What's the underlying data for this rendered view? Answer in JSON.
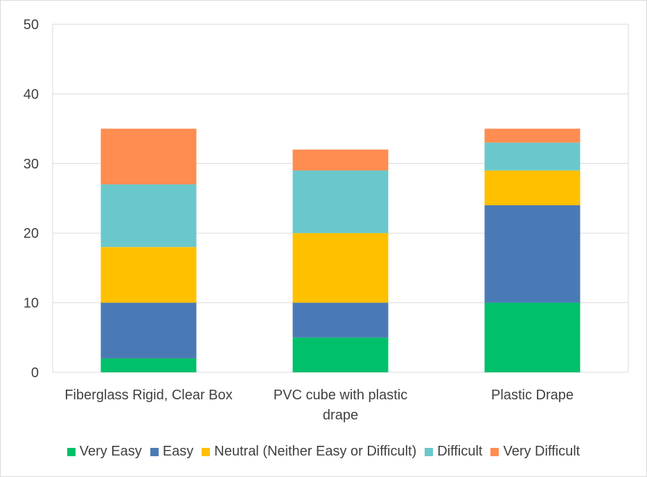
{
  "chart_data": {
    "type": "bar",
    "stacked": true,
    "title": "",
    "xlabel": "",
    "ylabel": "",
    "ylim": [
      0,
      50
    ],
    "yticks": [
      0,
      10,
      20,
      30,
      40,
      50
    ],
    "grid": true,
    "legend_position": "bottom",
    "categories": [
      [
        "Fiberglass Rigid, Clear Box"
      ],
      [
        "PVC cube with plastic",
        "drape"
      ],
      [
        "Plastic Drape"
      ]
    ],
    "series": [
      {
        "name": "Very Easy",
        "color": "#00c06b",
        "values": [
          2,
          5,
          10
        ]
      },
      {
        "name": "Easy",
        "color": "#4a7ab5",
        "values": [
          8,
          5,
          14
        ]
      },
      {
        "name": "Neutral (Neither Easy or Difficult)",
        "color": "#ffc000",
        "values": [
          8,
          10,
          5
        ]
      },
      {
        "name": "Difficult",
        "color": "#6ac8cc",
        "values": [
          9,
          9,
          4
        ]
      },
      {
        "name": "Very Difficult",
        "color": "#ff8c50",
        "values": [
          8,
          3,
          2
        ]
      }
    ]
  }
}
